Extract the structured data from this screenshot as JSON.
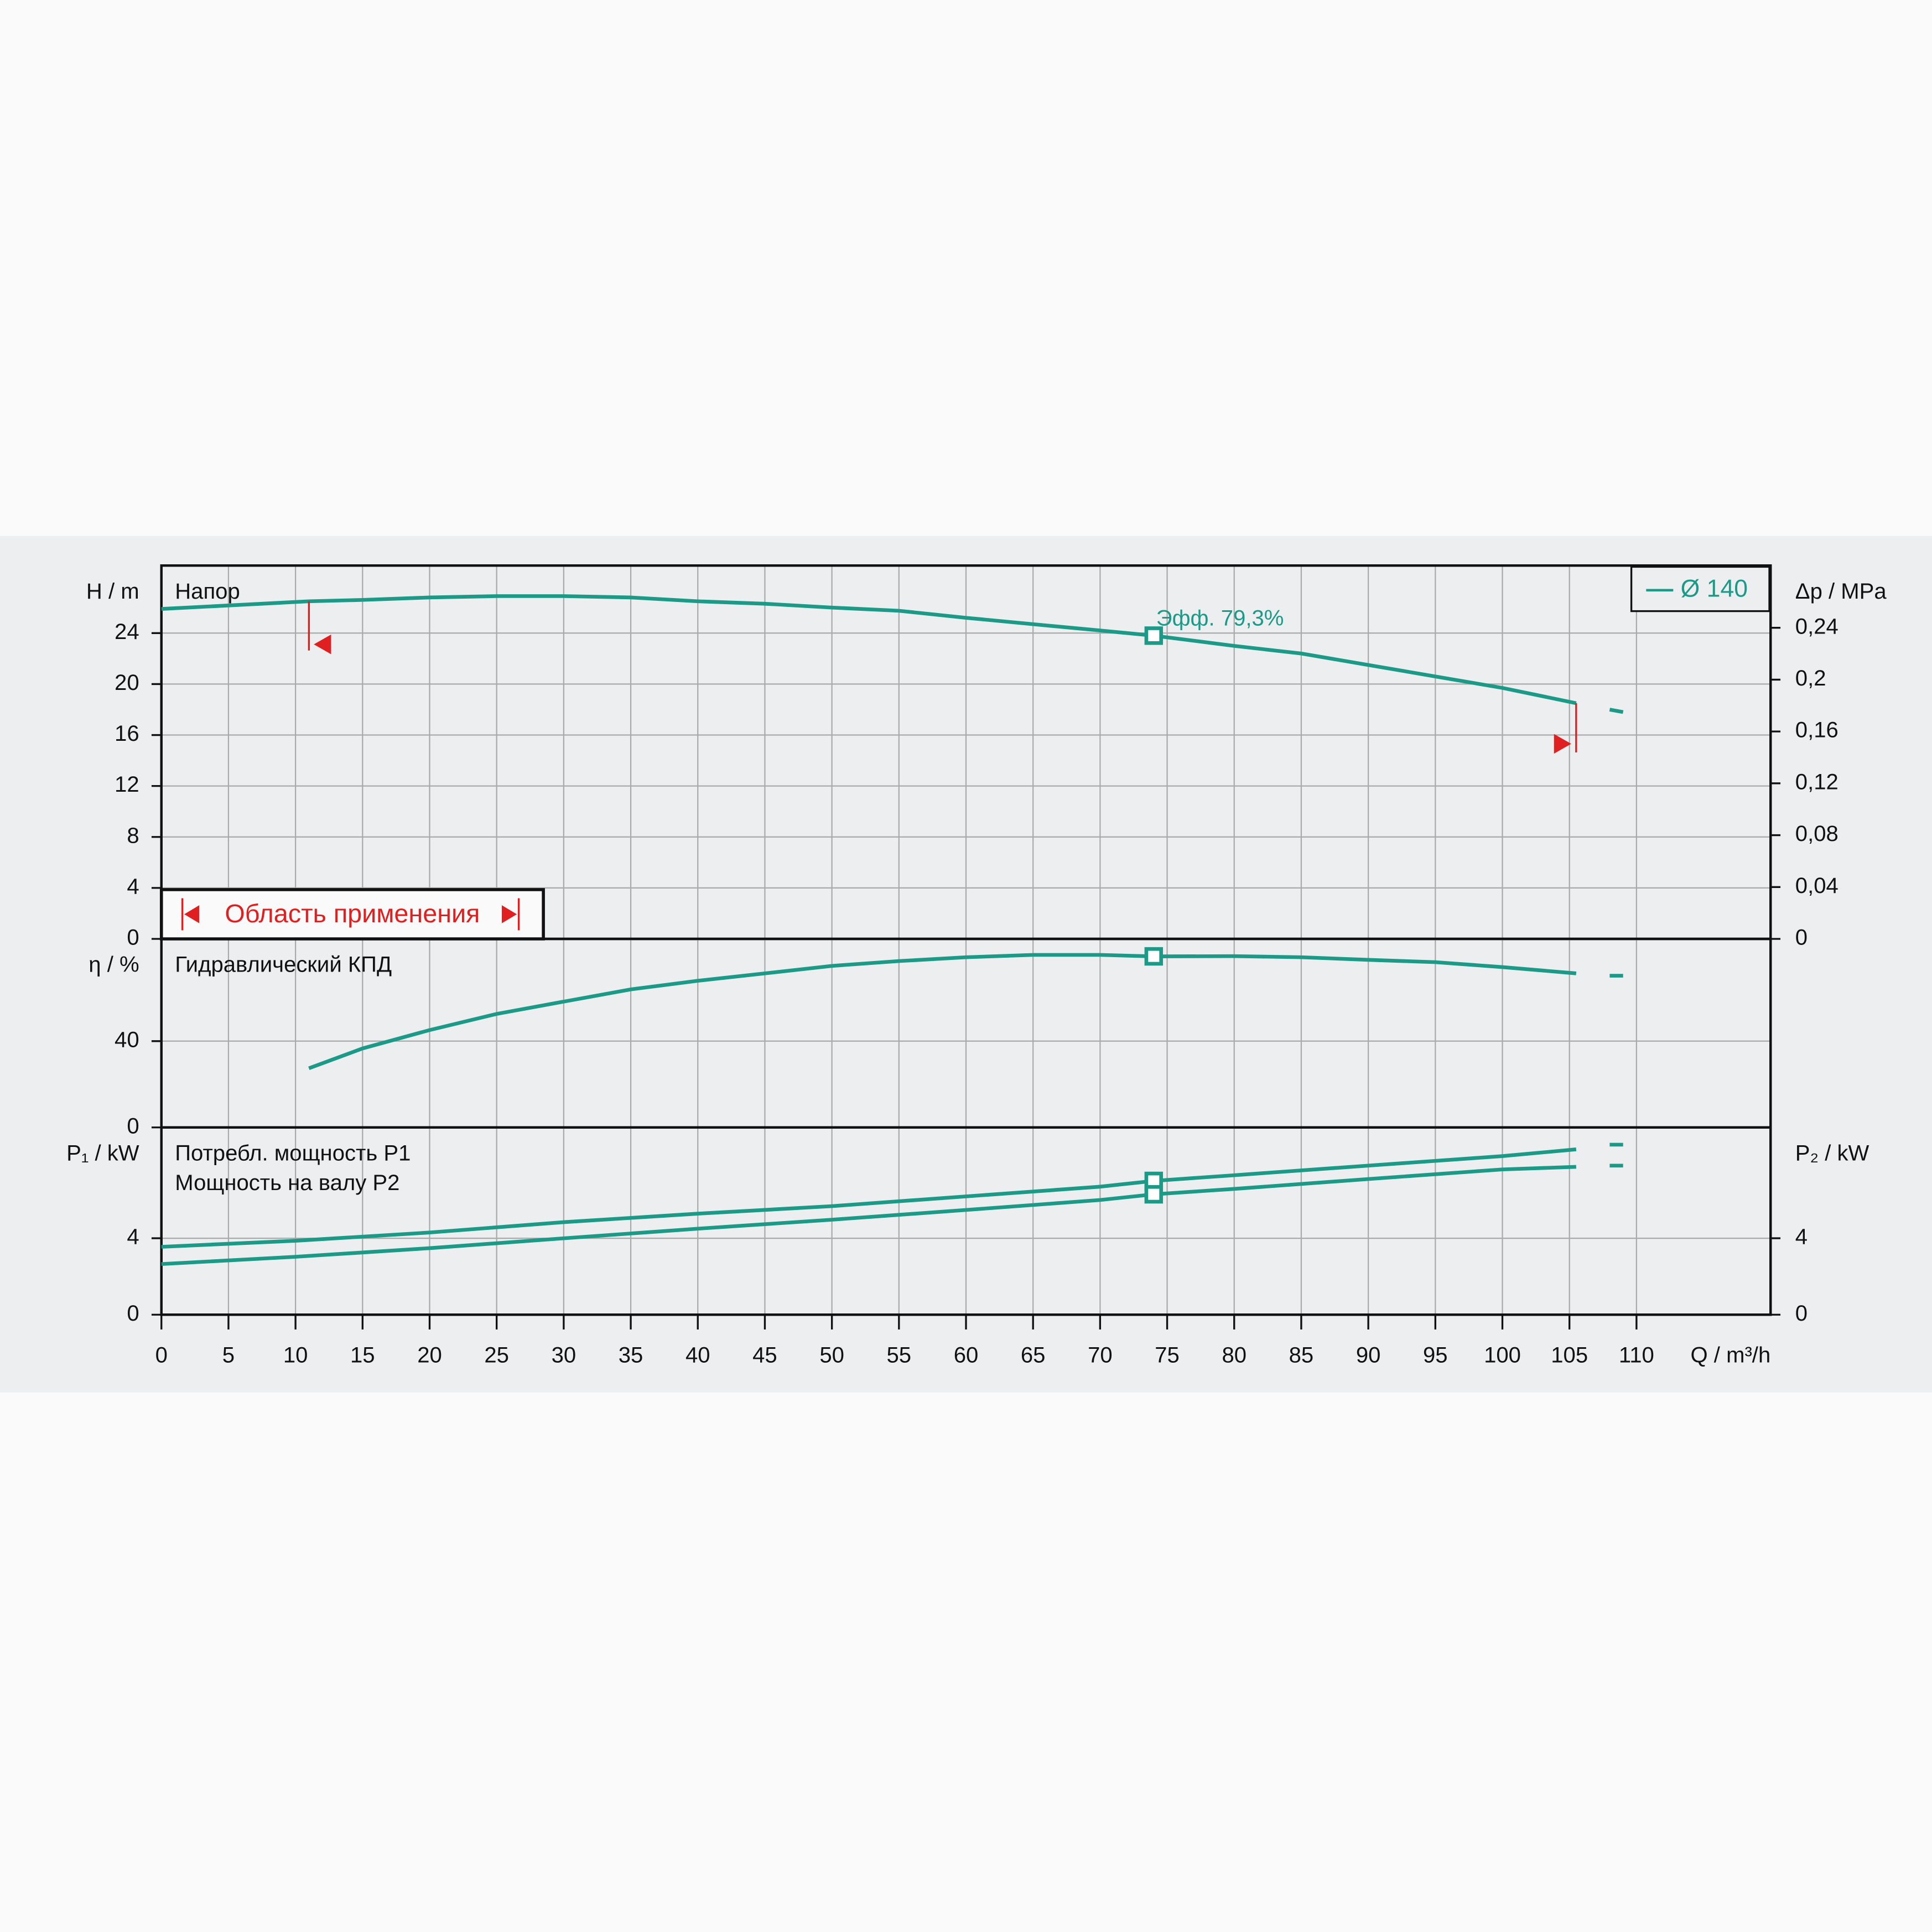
{
  "chart_data": [
    {
      "type": "line",
      "ylabel": "H / m",
      "y2label": "Δp / MPa",
      "legend": "Ø 140",
      "annotation": "Эфф.  79,3%",
      "range_label": "Область применения",
      "range": [
        11,
        105.5
      ],
      "duty_point": 74,
      "x": [
        0,
        11,
        15,
        20,
        25,
        30,
        35,
        40,
        45,
        50,
        55,
        60,
        65,
        70,
        74,
        80,
        85,
        90,
        95,
        100,
        105.5,
        107,
        108,
        109
      ],
      "xlim": [
        0,
        120
      ],
      "ylim": [
        0,
        29.3
      ],
      "yticks": [
        0,
        4,
        8,
        12,
        16,
        20,
        24
      ],
      "y2lim": [
        0,
        0.288
      ],
      "y2ticks": [
        0,
        {
          "value": 0.04,
          "label": "0,04"
        },
        {
          "value": 0.08,
          "label": "0,08"
        },
        {
          "value": 0.12,
          "label": "0,12"
        },
        {
          "value": 0.16,
          "label": "0,16"
        },
        {
          "value": 0.2,
          "label": "0,2"
        },
        {
          "value": 0.24,
          "label": "0,24"
        }
      ],
      "series": [
        {
          "name": "Напор",
          "color": "#1a9a87",
          "values": [
            25.9,
            26.5,
            26.6,
            26.8,
            26.9,
            26.9,
            26.8,
            26.5,
            26.3,
            26.0,
            25.75,
            25.2,
            24.7,
            24.2,
            23.8,
            23.0,
            22.4,
            21.5,
            20.6,
            19.7,
            18.5,
            null,
            18.0,
            17.8
          ]
        }
      ]
    },
    {
      "type": "line",
      "ylabel": "η / %",
      "x": [
        0,
        11,
        15,
        20,
        25,
        30,
        35,
        40,
        45,
        50,
        55,
        60,
        65,
        70,
        74,
        80,
        85,
        90,
        95,
        100,
        105.5,
        107,
        108,
        109
      ],
      "xlim": [
        0,
        120
      ],
      "ylim": [
        0,
        87.4
      ],
      "yticks": [
        0,
        40
      ],
      "duty_point": 74,
      "series": [
        {
          "name": "Гидравлический КПД",
          "color": "#1a9a87",
          "values": [
            null,
            27.4,
            36.6,
            45.1,
            52.6,
            58.3,
            64,
            68,
            71.4,
            74.9,
            77.1,
            78.9,
            80,
            80,
            79.3,
            79.4,
            78.9,
            77.7,
            76.6,
            74.3,
            71.4,
            null,
            70.3,
            70.3
          ]
        }
      ]
    },
    {
      "type": "line",
      "ylabel": "P₁ / kW",
      "y2label": "P₂ / kW",
      "xlabel": "Q / m³/h",
      "duty_point": 74,
      "x": [
        0,
        10,
        20,
        30,
        40,
        50,
        60,
        70,
        74,
        80,
        90,
        100,
        105.5,
        107,
        108,
        109
      ],
      "xlim": [
        0,
        120
      ],
      "xticks": [
        0,
        5,
        10,
        15,
        20,
        25,
        30,
        35,
        40,
        45,
        50,
        55,
        60,
        65,
        70,
        75,
        80,
        85,
        90,
        95,
        100,
        105,
        110
      ],
      "ylim": [
        0,
        9.8
      ],
      "yticks": [
        0,
        4
      ],
      "y2lim": [
        0,
        9.8
      ],
      "y2ticks": [
        0,
        4
      ],
      "series": [
        {
          "name": "Потребл. мощность P1",
          "color": "#1a9a87",
          "values": [
            3.55,
            3.87,
            4.3,
            4.84,
            5.29,
            5.68,
            6.19,
            6.7,
            7.0,
            7.3,
            7.8,
            8.3,
            8.65,
            null,
            8.9,
            8.9
          ]
        },
        {
          "name": "Мощность на валу P2",
          "color": "#1a9a87",
          "axis": "y2",
          "values": [
            2.65,
            3.03,
            3.48,
            4.0,
            4.5,
            4.97,
            5.48,
            6.0,
            6.3,
            6.58,
            7.1,
            7.6,
            7.74,
            null,
            7.8,
            7.8
          ]
        }
      ]
    }
  ]
}
